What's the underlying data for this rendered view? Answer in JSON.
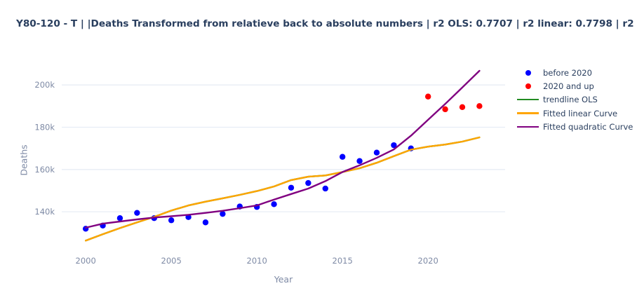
{
  "title": "Y80-120 - T |  |Deaths Transformed from relatieve back to absolute numbers | r2 OLS: 0.7707 | r2 linear: 0.7798 | r2 quadratic:",
  "stats": {
    "r2_ols": "0.7707",
    "r2_linear": "0.7798",
    "r2_quadratic": ""
  },
  "colors": {
    "title_text": "#2a3f5f",
    "axis_text": "#7e8aa5",
    "legend_text": "#2a3f5f",
    "gridline": "#e7edf5",
    "background": "#ffffff",
    "before_2020": "#0000ff",
    "from_2020": "#ff0000",
    "trendline_ols": "#228b22",
    "fitted_linear": "#ffa500",
    "fitted_quadratic": "#800080"
  },
  "legend": {
    "items": [
      {
        "label": "before 2020",
        "marker": "dot",
        "color": "#0000ff"
      },
      {
        "label": "2020 and up",
        "marker": "dot",
        "color": "#ff0000"
      },
      {
        "label": "trendline OLS",
        "marker": "line",
        "color": "#228b22"
      },
      {
        "label": "Fitted linear Curve",
        "marker": "line",
        "color": "#ffa500"
      },
      {
        "label": "Fitted quadratic Curve",
        "marker": "line",
        "color": "#800080"
      }
    ]
  },
  "chart_data": {
    "type": "scatter",
    "title": "Y80-120 - T |  |Deaths Transformed from relatieve back to absolute numbers | r2 OLS: 0.7707 | r2 linear: 0.7798 | r2 quadratic:",
    "xlabel": "Year",
    "ylabel": "Deaths",
    "xlim": [
      1998.6,
      2024.5
    ],
    "ylim_thousands": [
      119.5,
      210.0
    ],
    "grid": true,
    "legend_position": "right-outside",
    "x_ticks": [
      2000,
      2005,
      2010,
      2015,
      2020
    ],
    "x_tick_labels": [
      "2000",
      "2005",
      "2010",
      "2015",
      "2020"
    ],
    "y_tick_values_thousands": [
      140,
      160,
      180,
      200
    ],
    "y_tick_labels": [
      "140k",
      "160k",
      "180k",
      "200k"
    ],
    "units": "deaths (absolute numbers, k = thousands)",
    "series": [
      {
        "name": "before 2020",
        "type": "scatter",
        "color": "#0000ff",
        "x": [
          2000,
          2001,
          2002,
          2003,
          2004,
          2005,
          2006,
          2007,
          2008,
          2009,
          2010,
          2011,
          2012,
          2013,
          2014,
          2015,
          2016,
          2017,
          2018,
          2019
        ],
        "y_thousands": [
          132.0,
          133.5,
          137.0,
          139.5,
          137.0,
          136.0,
          137.5,
          135.0,
          139.0,
          142.5,
          142.3,
          143.6,
          151.4,
          153.6,
          151.0,
          166.0,
          164.0,
          168.0,
          171.5,
          170.0
        ]
      },
      {
        "name": "2020 and up",
        "type": "scatter",
        "color": "#ff0000",
        "x": [
          2020,
          2021,
          2022,
          2023
        ],
        "y_thousands": [
          194.5,
          188.5,
          189.5,
          190.0
        ]
      },
      {
        "name": "trendline OLS",
        "type": "line",
        "color": "#228b22",
        "x": [
          2000,
          2001,
          2002,
          2003,
          2004,
          2005,
          2006,
          2007,
          2008,
          2009,
          2010,
          2011,
          2012,
          2013,
          2014,
          2015,
          2016,
          2017,
          2018,
          2019,
          2020,
          2021,
          2022,
          2023
        ],
        "y_thousands": [
          126.4,
          129.4,
          132.3,
          135.0,
          137.6,
          140.6,
          143.0,
          144.8,
          146.4,
          148.0,
          149.8,
          152.0,
          155.0,
          156.6,
          157.2,
          158.8,
          160.6,
          163.2,
          166.3,
          169.4,
          170.8,
          171.8,
          173.2,
          175.2
        ]
      },
      {
        "name": "Fitted linear Curve",
        "type": "line",
        "color": "#ffa500",
        "x": [
          2000,
          2001,
          2002,
          2003,
          2004,
          2005,
          2006,
          2007,
          2008,
          2009,
          2010,
          2011,
          2012,
          2013,
          2014,
          2015,
          2016,
          2017,
          2018,
          2019,
          2020,
          2021,
          2022,
          2023
        ],
        "y_thousands": [
          126.4,
          129.4,
          132.3,
          135.0,
          137.6,
          140.6,
          143.0,
          144.8,
          146.4,
          148.0,
          149.8,
          152.0,
          155.0,
          156.6,
          157.2,
          158.8,
          160.6,
          163.2,
          166.3,
          169.4,
          170.8,
          171.8,
          173.2,
          175.2
        ]
      },
      {
        "name": "Fitted quadratic Curve",
        "type": "line",
        "color": "#800080",
        "x": [
          2000,
          2001,
          2002,
          2003,
          2004,
          2005,
          2006,
          2007,
          2008,
          2009,
          2010,
          2011,
          2012,
          2013,
          2014,
          2015,
          2016,
          2017,
          2018,
          2019,
          2020,
          2021,
          2022,
          2023
        ],
        "y_thousands": [
          132.5,
          134.4,
          135.4,
          136.4,
          137.3,
          137.9,
          138.6,
          139.5,
          140.5,
          141.7,
          143.0,
          145.8,
          148.4,
          151.0,
          154.5,
          158.8,
          162.0,
          165.5,
          169.5,
          176.0,
          183.5,
          191.0,
          198.8,
          206.7
        ]
      }
    ]
  }
}
